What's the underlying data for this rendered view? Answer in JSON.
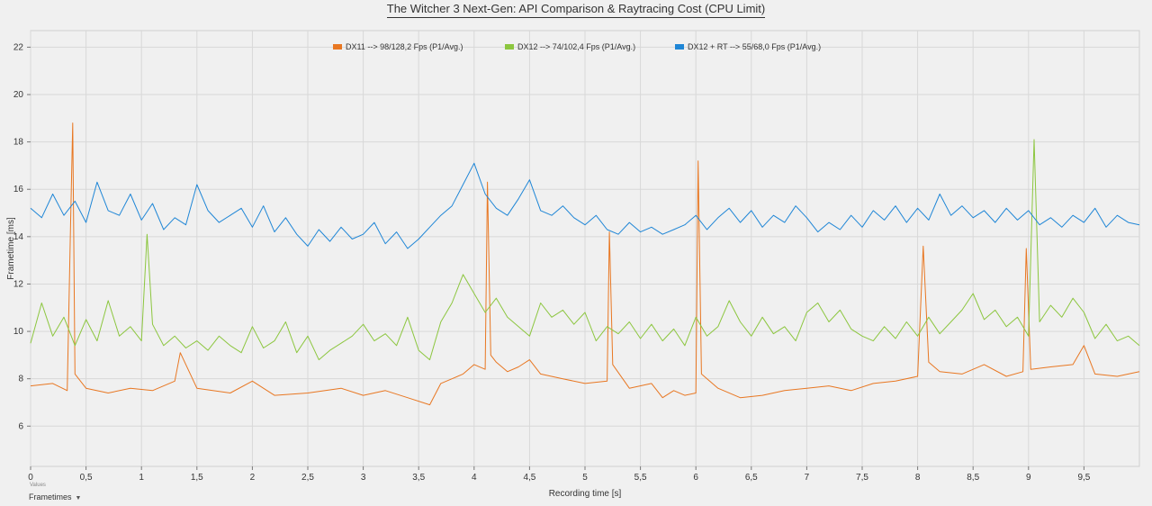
{
  "chart_data": {
    "type": "line",
    "title": "The Witcher 3 Next-Gen: API Comparison & Raytracing Cost (CPU Limit)",
    "xlabel": "Recording time [s]",
    "ylabel": "Frametime [ms]",
    "xlim": [
      0,
      10
    ],
    "ylim": [
      4.3,
      22.7
    ],
    "x_ticks": [
      0,
      0.5,
      1,
      1.5,
      2,
      2.5,
      3,
      3.5,
      4,
      4.5,
      5,
      5.5,
      6,
      6.5,
      7,
      7.5,
      8,
      8.5,
      9,
      9.5
    ],
    "x_tick_labels": [
      "0",
      "0,5",
      "1",
      "1,5",
      "2",
      "2,5",
      "3",
      "3,5",
      "4",
      "4,5",
      "5",
      "5,5",
      "6",
      "6,5",
      "7",
      "7,5",
      "8",
      "8,5",
      "9",
      "9,5"
    ],
    "y_ticks": [
      6,
      8,
      10,
      12,
      14,
      16,
      18,
      20,
      22
    ],
    "y_tick_labels": [
      "6",
      "8",
      "10",
      "12",
      "14",
      "16",
      "18",
      "20",
      "22"
    ],
    "grid": true,
    "legend_position": "top-center",
    "series": [
      {
        "name": "DX11 --> 98/128,2 Fps (P1/Avg.)",
        "color": "#e87722",
        "x": [
          0,
          0.2,
          0.33,
          0.36,
          0.38,
          0.4,
          0.5,
          0.7,
          0.9,
          1.1,
          1.3,
          1.35,
          1.5,
          1.8,
          2,
          2.2,
          2.5,
          2.8,
          3,
          3.2,
          3.4,
          3.6,
          3.7,
          3.8,
          3.9,
          4,
          4.1,
          4.12,
          4.15,
          4.2,
          4.3,
          4.4,
          4.5,
          4.6,
          4.8,
          5,
          5.2,
          5.22,
          5.25,
          5.4,
          5.6,
          5.7,
          5.8,
          5.9,
          6,
          6.02,
          6.05,
          6.2,
          6.4,
          6.6,
          6.8,
          7,
          7.2,
          7.4,
          7.6,
          7.8,
          8,
          8.05,
          8.1,
          8.2,
          8.4,
          8.6,
          8.8,
          8.95,
          8.98,
          9.02,
          9.2,
          9.4,
          9.5,
          9.6,
          9.8,
          10
        ],
        "values": [
          7.7,
          7.8,
          7.5,
          14.5,
          18.8,
          8.2,
          7.6,
          7.4,
          7.6,
          7.5,
          7.9,
          9.1,
          7.6,
          7.4,
          7.9,
          7.3,
          7.4,
          7.6,
          7.3,
          7.5,
          7.2,
          6.9,
          7.8,
          8,
          8.2,
          8.6,
          8.4,
          16.3,
          9,
          8.7,
          8.3,
          8.5,
          8.8,
          8.2,
          8,
          7.8,
          7.9,
          14.2,
          8.6,
          7.6,
          7.8,
          7.2,
          7.5,
          7.3,
          7.4,
          17.2,
          8.2,
          7.6,
          7.2,
          7.3,
          7.5,
          7.6,
          7.7,
          7.5,
          7.8,
          7.9,
          8.1,
          13.6,
          8.7,
          8.3,
          8.2,
          8.6,
          8.1,
          8.3,
          13.5,
          8.4,
          8.5,
          8.6,
          9.4,
          8.2,
          8.1,
          8.3
        ]
      },
      {
        "name": "DX12 --> 74/102,4 Fps (P1/Avg.)",
        "color": "#8cc63f",
        "x": [
          0,
          0.1,
          0.2,
          0.3,
          0.4,
          0.5,
          0.6,
          0.7,
          0.8,
          0.9,
          1,
          1.05,
          1.1,
          1.2,
          1.3,
          1.4,
          1.5,
          1.6,
          1.7,
          1.8,
          1.9,
          2,
          2.1,
          2.2,
          2.3,
          2.4,
          2.5,
          2.6,
          2.7,
          2.8,
          2.9,
          3,
          3.1,
          3.2,
          3.3,
          3.4,
          3.5,
          3.6,
          3.7,
          3.8,
          3.9,
          4,
          4.1,
          4.2,
          4.3,
          4.4,
          4.5,
          4.6,
          4.7,
          4.8,
          4.9,
          5,
          5.1,
          5.2,
          5.3,
          5.4,
          5.5,
          5.6,
          5.7,
          5.8,
          5.9,
          6,
          6.1,
          6.2,
          6.3,
          6.4,
          6.5,
          6.6,
          6.7,
          6.8,
          6.9,
          7,
          7.1,
          7.2,
          7.3,
          7.4,
          7.5,
          7.6,
          7.7,
          7.8,
          7.9,
          8,
          8.1,
          8.2,
          8.3,
          8.4,
          8.5,
          8.6,
          8.7,
          8.8,
          8.9,
          9,
          9.05,
          9.1,
          9.2,
          9.3,
          9.4,
          9.5,
          9.6,
          9.7,
          9.8,
          9.9,
          10
        ],
        "values": [
          9.5,
          11.2,
          9.8,
          10.6,
          9.4,
          10.5,
          9.6,
          11.3,
          9.8,
          10.2,
          9.6,
          14.1,
          10.3,
          9.4,
          9.8,
          9.3,
          9.6,
          9.2,
          9.8,
          9.4,
          9.1,
          10.2,
          9.3,
          9.6,
          10.4,
          9.1,
          9.8,
          8.8,
          9.2,
          9.5,
          9.8,
          10.3,
          9.6,
          9.9,
          9.4,
          10.6,
          9.2,
          8.8,
          10.4,
          11.2,
          12.4,
          11.6,
          10.8,
          11.4,
          10.6,
          10.2,
          9.8,
          11.2,
          10.6,
          10.9,
          10.3,
          10.8,
          9.6,
          10.2,
          9.9,
          10.4,
          9.7,
          10.3,
          9.6,
          10.1,
          9.4,
          10.6,
          9.8,
          10.2,
          11.3,
          10.4,
          9.8,
          10.6,
          9.9,
          10.2,
          9.6,
          10.8,
          11.2,
          10.4,
          10.9,
          10.1,
          9.8,
          9.6,
          10.2,
          9.7,
          10.4,
          9.8,
          10.6,
          9.9,
          10.4,
          10.9,
          11.6,
          10.5,
          10.9,
          10.2,
          10.6,
          9.8,
          18.1,
          10.4,
          11.1,
          10.6,
          11.4,
          10.8,
          9.7,
          10.3,
          9.6,
          9.8,
          9.4
        ]
      },
      {
        "name": "DX12 + RT --> 55/68,0 Fps (P1/Avg.)",
        "color": "#1f86d6",
        "x": [
          0,
          0.1,
          0.2,
          0.3,
          0.4,
          0.5,
          0.6,
          0.7,
          0.8,
          0.9,
          1,
          1.1,
          1.2,
          1.3,
          1.4,
          1.5,
          1.6,
          1.7,
          1.8,
          1.9,
          2,
          2.1,
          2.2,
          2.3,
          2.4,
          2.5,
          2.6,
          2.7,
          2.8,
          2.9,
          3,
          3.1,
          3.2,
          3.3,
          3.4,
          3.5,
          3.6,
          3.7,
          3.8,
          3.9,
          4,
          4.1,
          4.2,
          4.3,
          4.4,
          4.5,
          4.6,
          4.7,
          4.8,
          4.9,
          5,
          5.1,
          5.2,
          5.3,
          5.4,
          5.5,
          5.6,
          5.7,
          5.8,
          5.9,
          6,
          6.1,
          6.2,
          6.3,
          6.4,
          6.5,
          6.6,
          6.7,
          6.8,
          6.9,
          7,
          7.1,
          7.2,
          7.3,
          7.4,
          7.5,
          7.6,
          7.7,
          7.8,
          7.9,
          8,
          8.1,
          8.2,
          8.3,
          8.4,
          8.5,
          8.6,
          8.7,
          8.8,
          8.9,
          9,
          9.1,
          9.2,
          9.3,
          9.4,
          9.5,
          9.6,
          9.7,
          9.8,
          9.9,
          10
        ],
        "values": [
          15.2,
          14.8,
          15.8,
          14.9,
          15.5,
          14.6,
          16.3,
          15.1,
          14.9,
          15.8,
          14.7,
          15.4,
          14.3,
          14.8,
          14.5,
          16.2,
          15.1,
          14.6,
          14.9,
          15.2,
          14.4,
          15.3,
          14.2,
          14.8,
          14.1,
          13.6,
          14.3,
          13.8,
          14.4,
          13.9,
          14.1,
          14.6,
          13.7,
          14.2,
          13.5,
          13.9,
          14.4,
          14.9,
          15.3,
          16.2,
          17.1,
          15.8,
          15.2,
          14.9,
          15.6,
          16.4,
          15.1,
          14.9,
          15.3,
          14.8,
          14.5,
          14.9,
          14.3,
          14.1,
          14.6,
          14.2,
          14.4,
          14.1,
          14.3,
          14.5,
          14.9,
          14.3,
          14.8,
          15.2,
          14.6,
          15.1,
          14.4,
          14.9,
          14.6,
          15.3,
          14.8,
          14.2,
          14.6,
          14.3,
          14.9,
          14.4,
          15.1,
          14.7,
          15.3,
          14.6,
          15.2,
          14.7,
          15.8,
          14.9,
          15.3,
          14.8,
          15.1,
          14.6,
          15.2,
          14.7,
          15.1,
          14.5,
          14.8,
          14.4,
          14.9,
          14.6,
          15.2,
          14.4,
          14.9,
          14.6,
          14.5
        ]
      }
    ]
  },
  "footer": {
    "values_label": "Values",
    "selector_label": "Frametimes"
  }
}
